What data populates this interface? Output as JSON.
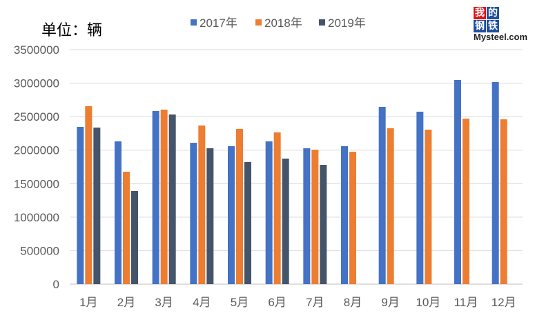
{
  "unit_label": "单位：辆",
  "logo": {
    "chars": [
      "我",
      "的",
      "钢",
      "铁"
    ],
    "text": "Mysteel.com"
  },
  "chart_data": {
    "type": "bar",
    "categories": [
      "1月",
      "2月",
      "3月",
      "4月",
      "5月",
      "6月",
      "7月",
      "8月",
      "9月",
      "10月",
      "11月",
      "12月"
    ],
    "series": [
      {
        "name": "2017年",
        "color": "#4472C4",
        "values": [
          2347000,
          2131000,
          2584000,
          2110000,
          2059000,
          2131000,
          2028000,
          2059000,
          2646000,
          2574000,
          3047000,
          3016000
        ]
      },
      {
        "name": "2018年",
        "color": "#ED7D31",
        "values": [
          2656000,
          1678000,
          2605000,
          2368000,
          2316000,
          2265000,
          2007000,
          1976000,
          2327000,
          2306000,
          2471000,
          2460000
        ]
      },
      {
        "name": "2019年",
        "color": "#44546A",
        "values": [
          2337000,
          1390000,
          2532000,
          2028000,
          1822000,
          1874000,
          1781000,
          null,
          null,
          null,
          null,
          null
        ]
      }
    ],
    "ylim": [
      0,
      3500000
    ],
    "yticks": [
      "0",
      "500000",
      "1000000",
      "1500000",
      "2000000",
      "2500000",
      "3000000",
      "3500000"
    ],
    "grid": true,
    "legend": "top"
  }
}
